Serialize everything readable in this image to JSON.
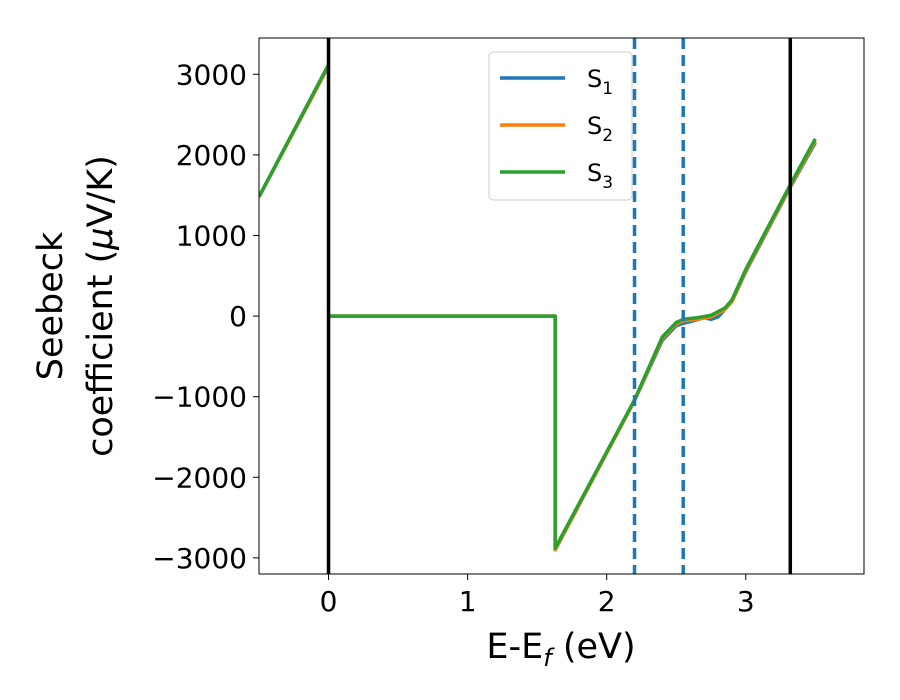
{
  "chart_data": {
    "type": "line",
    "xlabel": {
      "main": "E-E",
      "sub": "f",
      "unit": " (eV)"
    },
    "ylabel": {
      "line1": "Seebeck",
      "line2_prefix": "coefficient  (",
      "mu": "μ",
      "line2_suffix": "V/K)"
    },
    "xlim": [
      -0.5,
      3.85
    ],
    "ylim": [
      -3200,
      3450
    ],
    "xticks": [
      {
        "value": 0,
        "label": "0"
      },
      {
        "value": 1,
        "label": "1"
      },
      {
        "value": 2,
        "label": "2"
      },
      {
        "value": 3,
        "label": "3"
      }
    ],
    "yticks": [
      {
        "value": 3000,
        "label": "3000"
      },
      {
        "value": 2000,
        "label": "2000"
      },
      {
        "value": 1000,
        "label": "1000"
      },
      {
        "value": 0,
        "label": "0"
      },
      {
        "value": -1000,
        "label": "−1000"
      },
      {
        "value": -2000,
        "label": "−2000"
      },
      {
        "value": -3000,
        "label": "−3000"
      }
    ],
    "grid": false,
    "legend_position": "top-center",
    "vlines_solid": [
      0,
      3.32
    ],
    "vlines_dashed": [
      2.2,
      2.55
    ],
    "colors": {
      "S1": "#1f77b4",
      "S2": "#ff7f0e",
      "S3": "#2ca02c",
      "solid_vline": "#000000",
      "dashed_vline": "#1f77b4"
    },
    "series": [
      {
        "name": "S",
        "sub": "1",
        "color": "#1f77b4",
        "segments": [
          {
            "x": [
              -0.5,
              0
            ],
            "y": [
              1480,
              3100
            ]
          },
          {
            "x": [
              0,
              1.63,
              1.63,
              2.2,
              2.4,
              2.5,
              2.55,
              2.62,
              2.7,
              2.75,
              2.8,
              2.9,
              3.0,
              3.32,
              3.5
            ],
            "y": [
              0,
              0,
              -2900,
              -1050,
              -300,
              -120,
              -90,
              -60,
              -20,
              -40,
              -10,
              180,
              550,
              1600,
              2150
            ]
          }
        ]
      },
      {
        "name": "S",
        "sub": "2",
        "color": "#ff7f0e",
        "segments": [
          {
            "x": [
              -0.5,
              0
            ],
            "y": [
              1480,
              3100
            ]
          },
          {
            "x": [
              0,
              1.63,
              1.63,
              2.2,
              2.4,
              2.5,
              2.55,
              2.65,
              2.75,
              2.85,
              2.9,
              3.0,
              3.32,
              3.5
            ],
            "y": [
              0,
              0,
              -2900,
              -1050,
              -280,
              -100,
              -60,
              -40,
              -10,
              80,
              180,
              560,
              1610,
              2170
            ]
          }
        ]
      },
      {
        "name": "S",
        "sub": "3",
        "color": "#2ca02c",
        "segments": [
          {
            "x": [
              -0.5,
              0
            ],
            "y": [
              1480,
              3120
            ]
          },
          {
            "x": [
              0,
              1.63,
              1.63,
              2.2,
              2.4,
              2.5,
              2.55,
              2.65,
              2.75,
              2.85,
              2.9,
              3.0,
              3.32,
              3.5
            ],
            "y": [
              0,
              0,
              -2880,
              -1040,
              -260,
              -80,
              -40,
              -20,
              10,
              100,
              200,
              580,
              1630,
              2200
            ]
          }
        ]
      }
    ]
  }
}
